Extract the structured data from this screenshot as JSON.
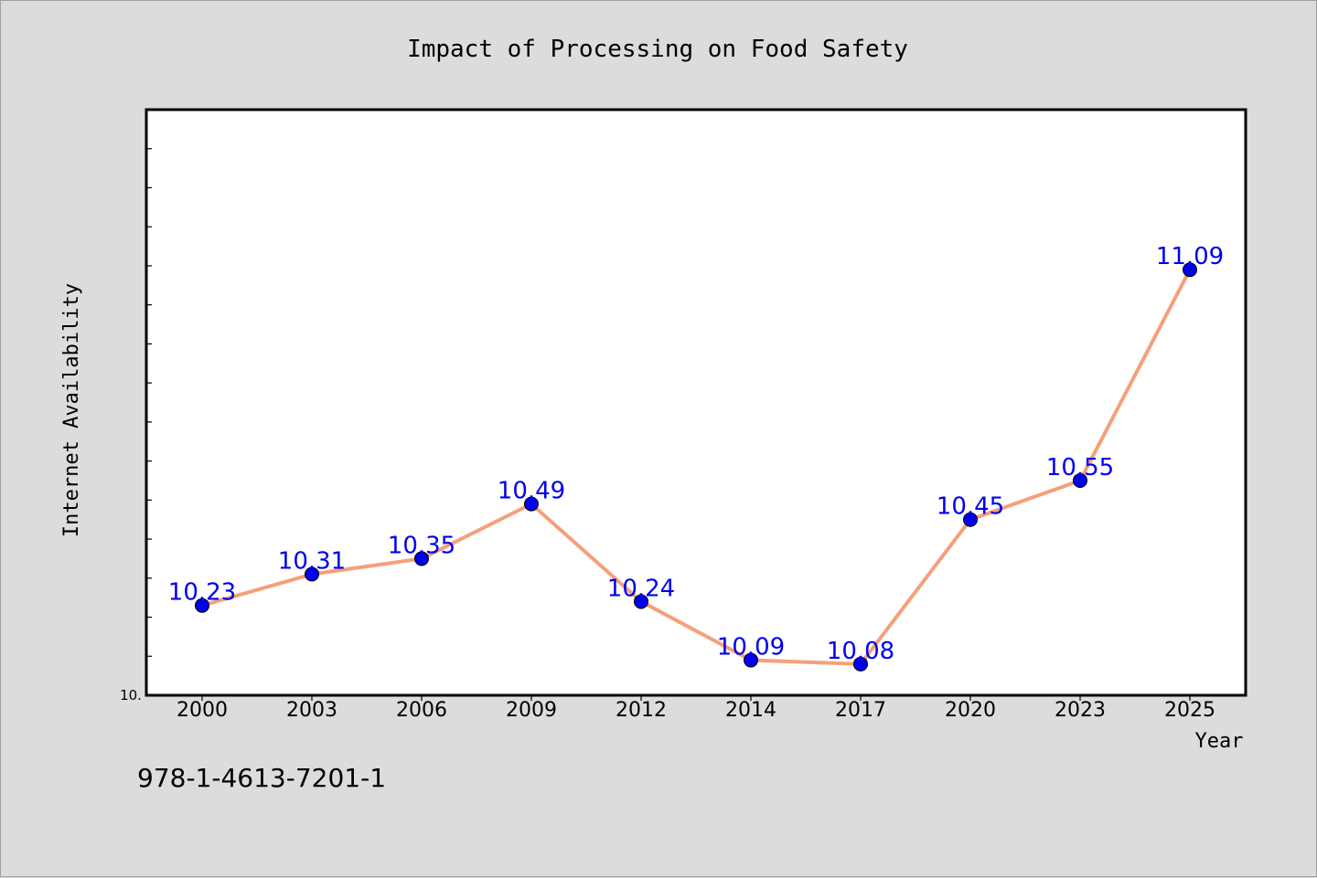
{
  "footer_code": "978-1-4613-7201-1",
  "chart_data": {
    "type": "line",
    "title": "Impact of Processing on Food Safety",
    "xlabel": "Year",
    "ylabel": "Internet Availability",
    "categories": [
      "2000",
      "2003",
      "2006",
      "2009",
      "2012",
      "2014",
      "2017",
      "2020",
      "2023",
      "2025"
    ],
    "values": [
      10.23,
      10.31,
      10.35,
      10.49,
      10.24,
      10.09,
      10.08,
      10.45,
      10.55,
      11.09
    ],
    "data_labels": [
      "10.23",
      "10.31",
      "10.35",
      "10.49",
      "10.24",
      "10.09",
      "10.08",
      "10.45",
      "10.55",
      "11.09"
    ],
    "ylim": [
      10.0,
      11.5
    ],
    "y_tick_label": "10.",
    "grid": false,
    "colors": {
      "line": "#f4a07a",
      "marker": "#0000ee",
      "data_label": "#0000ee",
      "plot_bg": "#ffffff",
      "figure_bg": "#dcdcdc"
    }
  }
}
